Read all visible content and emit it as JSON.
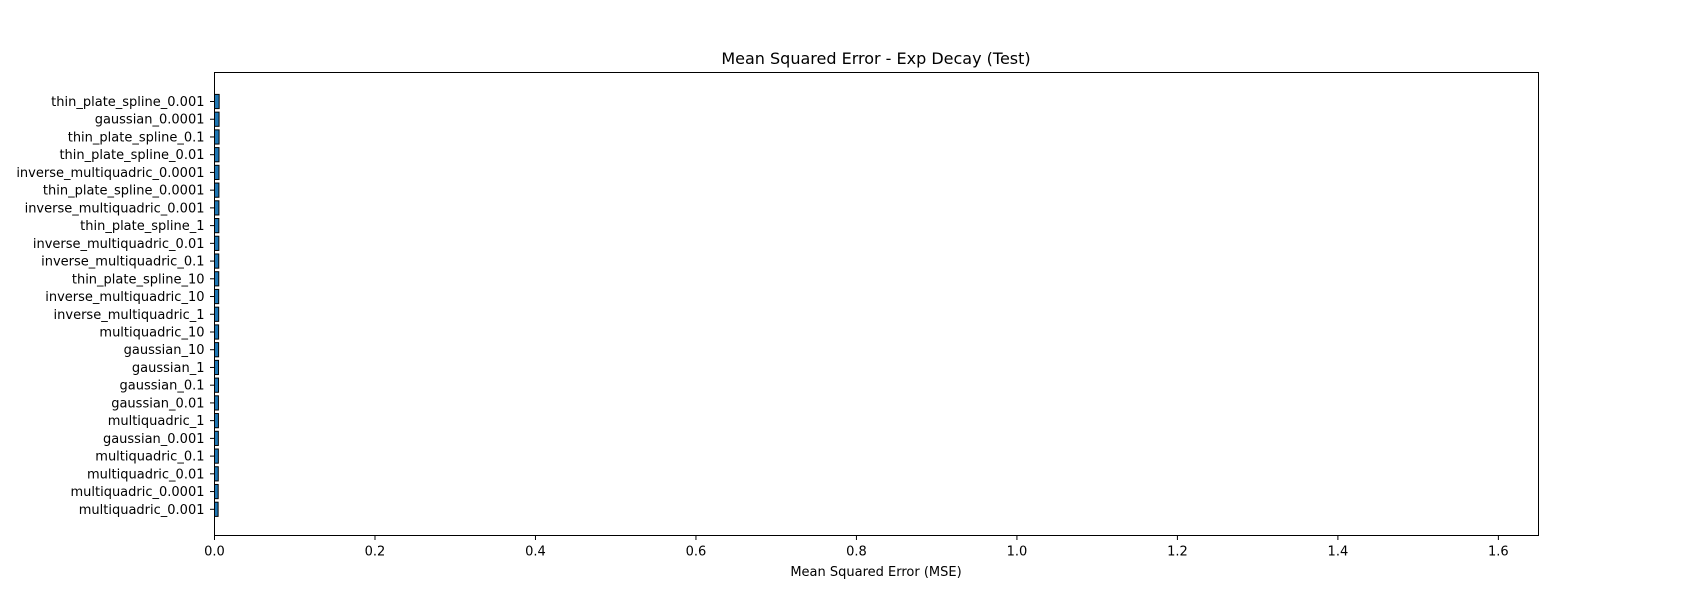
{
  "chart_data": {
    "type": "bar",
    "orientation": "horizontal",
    "title": "Mean Squared Error - Exp Decay (Test)",
    "xlabel": "Mean Squared Error (MSE)",
    "ylabel": "",
    "xlim": [
      0,
      1.65
    ],
    "xticks": [
      "0.0",
      "0.2",
      "0.4",
      "0.6",
      "0.8",
      "1.0",
      "1.2",
      "1.4",
      "1.6"
    ],
    "xtick_values": [
      0,
      0.2,
      0.4,
      0.6,
      0.8,
      1.0,
      1.2,
      1.4,
      1.6
    ],
    "grid": false,
    "bar_color": "#1f77b4",
    "bar_edge_color": "#000000",
    "categories": [
      "thin_plate_spline_0.001",
      "gaussian_0.0001",
      "thin_plate_spline_0.1",
      "thin_plate_spline_0.01",
      "inverse_multiquadric_0.0001",
      "thin_plate_spline_0.0001",
      "inverse_multiquadric_0.001",
      "thin_plate_spline_1",
      "inverse_multiquadric_0.01",
      "inverse_multiquadric_0.1",
      "thin_plate_spline_10",
      "inverse_multiquadric_10",
      "inverse_multiquadric_1",
      "multiquadric_10",
      "gaussian_10",
      "gaussian_1",
      "gaussian_0.1",
      "gaussian_0.01",
      "multiquadric_1",
      "gaussian_0.001",
      "multiquadric_0.1",
      "multiquadric_0.01",
      "multiquadric_0.0001",
      "multiquadric_0.001"
    ],
    "values": [
      0.0058,
      0.0057,
      0.0057,
      0.0056,
      0.0056,
      0.0055,
      0.0055,
      0.0054,
      0.0054,
      0.0053,
      0.0053,
      0.0052,
      0.0052,
      0.0051,
      0.0051,
      0.005,
      0.005,
      0.0049,
      0.0049,
      0.0048,
      0.0048,
      0.0047,
      0.0046,
      0.0045
    ]
  }
}
